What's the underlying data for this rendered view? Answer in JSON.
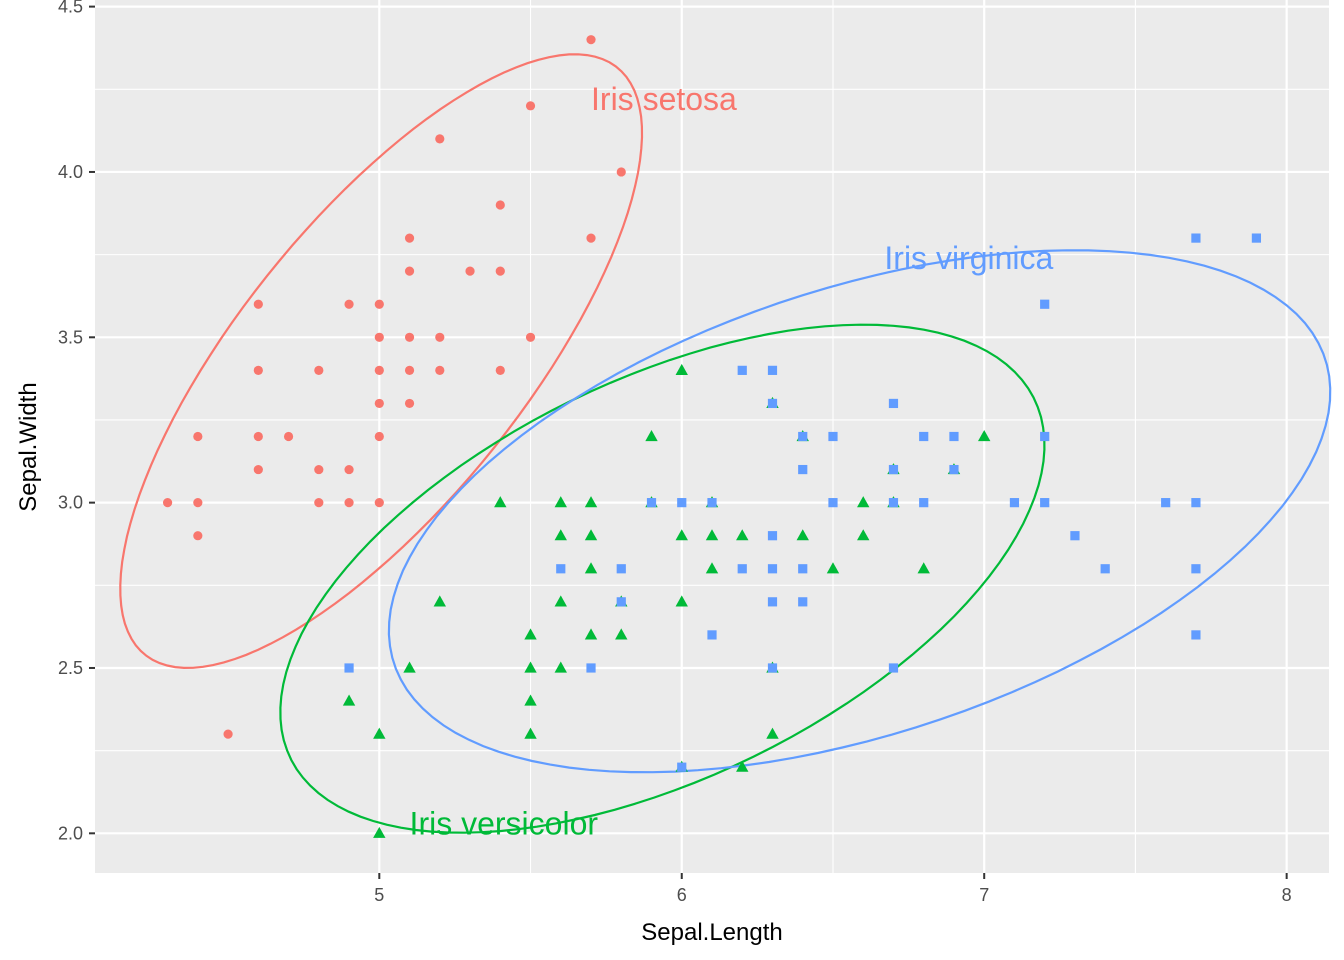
{
  "chart_data": {
    "type": "scatter",
    "title": "",
    "xlabel": "Sepal.Length",
    "ylabel": "Sepal.Width",
    "xlim": [
      4.06,
      8.14
    ],
    "ylim": [
      1.88,
      4.52
    ],
    "x_ticks": [
      5,
      6,
      7,
      8
    ],
    "x_tick_labels": [
      "5",
      "6",
      "7",
      "8"
    ],
    "y_ticks": [
      2.0,
      2.5,
      3.0,
      3.5,
      4.0,
      4.5
    ],
    "y_tick_labels": [
      "2.0",
      "2.5",
      "3.0",
      "3.5",
      "4.0",
      "4.5"
    ],
    "grid": true,
    "legend": "none",
    "background": "#ebebeb",
    "grid_color": "#ffffff",
    "series": [
      {
        "name": "Iris setosa",
        "color": "#f8766d",
        "marker": "circle",
        "points": [
          [
            5.7,
            4.4
          ],
          [
            5.5,
            4.2
          ],
          [
            5.2,
            4.1
          ],
          [
            5.8,
            4.0
          ],
          [
            5.4,
            3.9
          ],
          [
            5.1,
            3.8
          ],
          [
            5.7,
            3.8
          ],
          [
            5.1,
            3.7
          ],
          [
            5.3,
            3.7
          ],
          [
            5.4,
            3.7
          ],
          [
            4.6,
            3.6
          ],
          [
            4.9,
            3.6
          ],
          [
            5.0,
            3.6
          ],
          [
            5.0,
            3.5
          ],
          [
            5.1,
            3.5
          ],
          [
            5.2,
            3.5
          ],
          [
            5.5,
            3.5
          ],
          [
            4.6,
            3.4
          ],
          [
            4.8,
            3.4
          ],
          [
            5.0,
            3.4
          ],
          [
            5.1,
            3.4
          ],
          [
            5.2,
            3.4
          ],
          [
            5.4,
            3.4
          ],
          [
            5.0,
            3.3
          ],
          [
            5.1,
            3.3
          ],
          [
            4.4,
            3.2
          ],
          [
            4.6,
            3.2
          ],
          [
            4.7,
            3.2
          ],
          [
            5.0,
            3.2
          ],
          [
            4.6,
            3.1
          ],
          [
            4.8,
            3.1
          ],
          [
            4.9,
            3.1
          ],
          [
            4.3,
            3.0
          ],
          [
            4.4,
            3.0
          ],
          [
            4.8,
            3.0
          ],
          [
            4.9,
            3.0
          ],
          [
            5.0,
            3.0
          ],
          [
            4.4,
            2.9
          ],
          [
            4.5,
            2.3
          ]
        ],
        "ellipse": {
          "cx": 5.006,
          "cy": 3.428,
          "sxx": 0.1242,
          "syy": 0.1437,
          "sxy": 0.0992
        },
        "label": {
          "text": "Iris setosa",
          "x": 5.7,
          "y": 4.22
        }
      },
      {
        "name": "Iris versicolor",
        "color": "#00ba38",
        "marker": "triangle",
        "points": [
          [
            6.0,
            3.4
          ],
          [
            6.3,
            3.3
          ],
          [
            5.9,
            3.2
          ],
          [
            6.4,
            3.2
          ],
          [
            7.0,
            3.2
          ],
          [
            6.7,
            3.1
          ],
          [
            6.9,
            3.1
          ],
          [
            5.4,
            3.0
          ],
          [
            5.6,
            3.0
          ],
          [
            5.7,
            3.0
          ],
          [
            5.9,
            3.0
          ],
          [
            6.1,
            3.0
          ],
          [
            6.6,
            3.0
          ],
          [
            6.7,
            3.0
          ],
          [
            5.6,
            2.9
          ],
          [
            5.7,
            2.9
          ],
          [
            6.0,
            2.9
          ],
          [
            6.1,
            2.9
          ],
          [
            6.2,
            2.9
          ],
          [
            6.4,
            2.9
          ],
          [
            6.6,
            2.9
          ],
          [
            5.7,
            2.8
          ],
          [
            6.1,
            2.8
          ],
          [
            6.5,
            2.8
          ],
          [
            6.8,
            2.8
          ],
          [
            5.2,
            2.7
          ],
          [
            5.6,
            2.7
          ],
          [
            5.8,
            2.7
          ],
          [
            6.0,
            2.7
          ],
          [
            5.5,
            2.6
          ],
          [
            5.7,
            2.6
          ],
          [
            5.8,
            2.6
          ],
          [
            5.1,
            2.5
          ],
          [
            5.5,
            2.5
          ],
          [
            5.6,
            2.5
          ],
          [
            6.3,
            2.5
          ],
          [
            4.9,
            2.4
          ],
          [
            5.5,
            2.4
          ],
          [
            5.0,
            2.3
          ],
          [
            5.5,
            2.3
          ],
          [
            6.3,
            2.3
          ],
          [
            6.0,
            2.2
          ],
          [
            6.2,
            2.2
          ],
          [
            5.0,
            2.0
          ]
        ],
        "ellipse": {
          "cx": 5.936,
          "cy": 2.77,
          "sxx": 0.2664,
          "syy": 0.0985,
          "sxy": 0.0852
        },
        "label": {
          "text": "Iris versicolor",
          "x": 5.1,
          "y": 2.03
        }
      },
      {
        "name": "Iris virginica",
        "color": "#619cff",
        "marker": "square",
        "points": [
          [
            7.7,
            3.8
          ],
          [
            7.9,
            3.8
          ],
          [
            7.2,
            3.6
          ],
          [
            6.2,
            3.4
          ],
          [
            6.3,
            3.4
          ],
          [
            6.3,
            3.3
          ],
          [
            6.7,
            3.3
          ],
          [
            6.4,
            3.2
          ],
          [
            6.5,
            3.2
          ],
          [
            6.8,
            3.2
          ],
          [
            6.9,
            3.2
          ],
          [
            7.2,
            3.2
          ],
          [
            6.4,
            3.1
          ],
          [
            6.7,
            3.1
          ],
          [
            6.9,
            3.1
          ],
          [
            5.9,
            3.0
          ],
          [
            6.0,
            3.0
          ],
          [
            6.1,
            3.0
          ],
          [
            6.5,
            3.0
          ],
          [
            6.7,
            3.0
          ],
          [
            6.8,
            3.0
          ],
          [
            7.1,
            3.0
          ],
          [
            7.2,
            3.0
          ],
          [
            7.6,
            3.0
          ],
          [
            7.7,
            3.0
          ],
          [
            6.3,
            2.9
          ],
          [
            7.3,
            2.9
          ],
          [
            5.6,
            2.8
          ],
          [
            5.8,
            2.8
          ],
          [
            6.2,
            2.8
          ],
          [
            6.3,
            2.8
          ],
          [
            6.4,
            2.8
          ],
          [
            7.4,
            2.8
          ],
          [
            7.7,
            2.8
          ],
          [
            5.8,
            2.7
          ],
          [
            6.3,
            2.7
          ],
          [
            6.4,
            2.7
          ],
          [
            6.1,
            2.6
          ],
          [
            7.7,
            2.6
          ],
          [
            4.9,
            2.5
          ],
          [
            5.7,
            2.5
          ],
          [
            6.3,
            2.5
          ],
          [
            6.7,
            2.5
          ],
          [
            6.0,
            2.2
          ]
        ],
        "ellipse": {
          "cx": 6.588,
          "cy": 2.974,
          "sxx": 0.4043,
          "syy": 0.104,
          "sxy": 0.0938
        },
        "label": {
          "text": "Iris virginica",
          "x": 6.67,
          "y": 3.74
        }
      }
    ]
  }
}
